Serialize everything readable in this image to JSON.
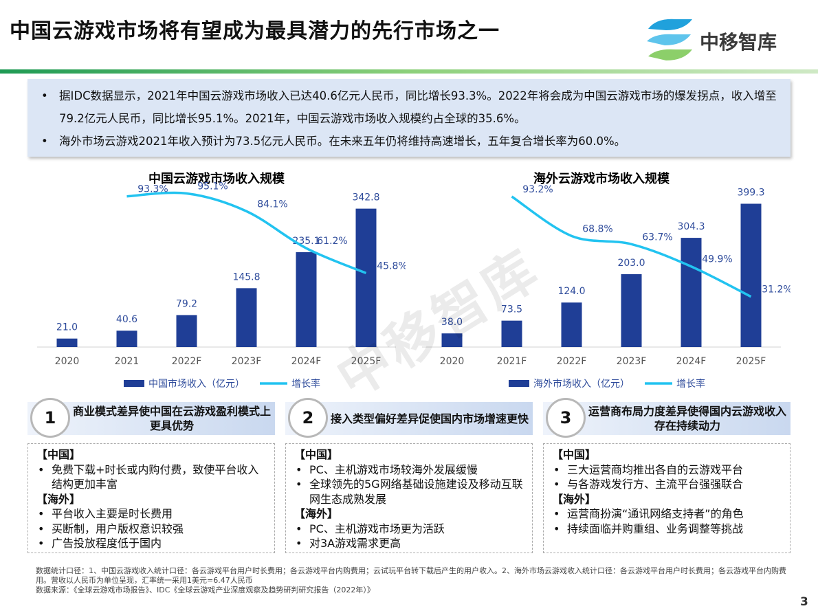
{
  "header": {
    "title": "中国云游戏市场将有望成为最具潜力的先行市场之一",
    "logo": "中移智库",
    "watermark": "中移智库"
  },
  "bullets": [
    "据IDC数据显示，2021年中国云游戏市场收入已达40.6亿元人民币，同比增长93.3%。2022年将会成为中国云游戏市场的爆发拐点，收入增至79.2亿元人民币，同比增长95.1%。2021年，中国云游戏市场收入规模约占全球的35.6%。",
    "海外市场云游戏2021年收入预计为73.5亿元人民币。在未来五年仍将维持高速增长，五年复合增长率为60.0%。"
  ],
  "chart_data": [
    {
      "type": "bar",
      "title": "中国云游戏市场收入规模",
      "categories": [
        "2020",
        "2021",
        "2022F",
        "2023F",
        "2024F",
        "2025F"
      ],
      "ylim": [
        0,
        400
      ],
      "y2lim": [
        0,
        100
      ],
      "series": [
        {
          "name": "中国市场收入（亿元）",
          "type": "bar",
          "color": "#1f3e96",
          "values": [
            21.0,
            40.6,
            79.2,
            145.8,
            235.1,
            342.8
          ],
          "value_labels": [
            "21.0",
            "40.6",
            "79.2",
            "145.8",
            "235.1",
            "342.8"
          ]
        },
        {
          "name": "增长率",
          "type": "line",
          "axis": "y2",
          "color": "#22c3f0",
          "values": [
            null,
            93.3,
            95.1,
            84.1,
            61.2,
            45.8
          ],
          "value_labels": [
            null,
            "93.3%",
            "95.1%",
            "84.1%",
            "61.2%",
            "45.8%"
          ]
        }
      ]
    },
    {
      "type": "bar",
      "title": "海外云游戏市场收入规模",
      "categories": [
        "2020",
        "2021F",
        "2022F",
        "2023F",
        "2024F",
        "2025F"
      ],
      "ylim": [
        0,
        450
      ],
      "y2lim": [
        0,
        100
      ],
      "series": [
        {
          "name": "海外市场收入（亿元）",
          "type": "bar",
          "color": "#1f3e96",
          "values": [
            38.0,
            73.5,
            124.0,
            203.0,
            304.3,
            399.3
          ],
          "value_labels": [
            "38.0",
            "73.5",
            "124.0",
            "203.0",
            "304.3",
            "399.3"
          ]
        },
        {
          "name": "增长率",
          "type": "line",
          "axis": "y2",
          "color": "#22c3f0",
          "values": [
            null,
            93.2,
            68.8,
            63.7,
            49.9,
            31.2
          ],
          "value_labels": [
            null,
            "93.2%",
            "68.8%",
            "63.7%",
            "49.9%",
            "31.2%"
          ]
        }
      ]
    }
  ],
  "cards": [
    {
      "number": "1",
      "title": "商业模式差异使中国在云游戏盈利模式上更具优势",
      "sections": [
        {
          "heading": "【中国】",
          "items": [
            "免费下载+时长或内购付费，致使平台收入结构更加丰富"
          ]
        },
        {
          "heading": "【海外】",
          "items": [
            "平台收入主要是时长费用",
            "买断制，用户版权意识较强",
            "广告投放程度低于国内"
          ]
        }
      ]
    },
    {
      "number": "2",
      "title": "接入类型偏好差异促使国内市场增速更快",
      "sections": [
        {
          "heading": "【中国】",
          "items": [
            "PC、主机游戏市场较海外发展缓慢",
            "全球领先的5G网络基础设施建设及移动互联网生态成熟发展"
          ]
        },
        {
          "heading": "【海外】",
          "items": [
            "PC、主机游戏市场更为活跃",
            "对3A游戏需求更高"
          ]
        }
      ]
    },
    {
      "number": "3",
      "title": "运营商布局力度差异使得国内云游戏收入存在持续动力",
      "sections": [
        {
          "heading": "【中国】",
          "items": [
            "三大运营商均推出各自的云游戏平台",
            "与各游戏发行方、主流平台强强联合"
          ]
        },
        {
          "heading": "【海外】",
          "items": [
            "运营商扮演“通讯网络支持者”的角色",
            "持续面临并购重组、业务调整等挑战"
          ]
        }
      ]
    }
  ],
  "notes": [
    "数据统计口径：1、中国云游戏收入统计口径：各云游戏平台用户时长费用；各云游戏平台内购费用；云试玩平台转下载后产生的用户收入。2、海外市场云游戏收入统计口径：各云游戏平台用户时长费用；各云游戏平台内购费用。营收以人民币为单位呈现，汇率统一采用1美元=6.47人民币",
    "数据来源：《全球云游戏市场报告》、IDC《全球云游戏产业深度观察及趋势研判研究报告（2022年）》"
  ],
  "page_number": "3"
}
